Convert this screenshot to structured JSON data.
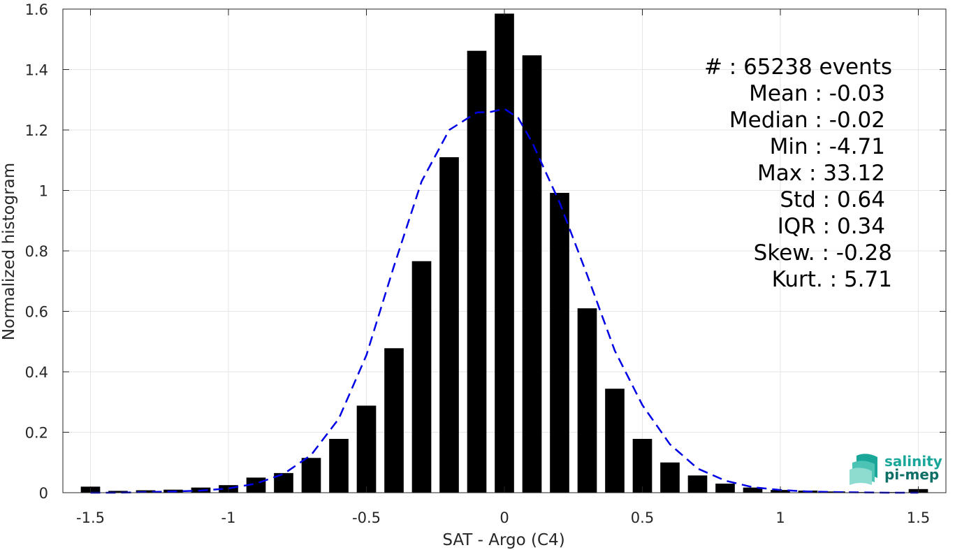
{
  "chart_data": {
    "type": "bar",
    "xlabel": "SAT - Argo (C4)",
    "ylabel": "Normalized histogram",
    "xlim": [
      -1.6,
      1.6
    ],
    "ylim": [
      0,
      1.6
    ],
    "xticks": [
      -1.5,
      -1,
      -0.5,
      0,
      0.5,
      1,
      1.5
    ],
    "xtick_labels": [
      "-1.5",
      "-1",
      "-0.5",
      "0",
      "0.5",
      "1",
      "1.5"
    ],
    "yticks": [
      0,
      0.2,
      0.4,
      0.6,
      0.8,
      1,
      1.2,
      1.4,
      1.6
    ],
    "ytick_labels": [
      "0",
      "0.2",
      "0.4",
      "0.6",
      "0.8",
      "1",
      "1.2",
      "1.4",
      "1.6"
    ],
    "grid": true,
    "bar_color": "#000000",
    "bar_width": 0.07,
    "bars": {
      "x": [
        -1.5,
        -1.4,
        -1.3,
        -1.2,
        -1.1,
        -1.0,
        -0.9,
        -0.8,
        -0.7,
        -0.6,
        -0.5,
        -0.4,
        -0.3,
        -0.2,
        -0.1,
        0.0,
        0.1,
        0.2,
        0.3,
        0.4,
        0.5,
        0.6,
        0.7,
        0.8,
        0.9,
        1.0,
        1.1,
        1.2,
        1.3,
        1.4,
        1.5
      ],
      "values": [
        0.02,
        0.006,
        0.008,
        0.01,
        0.017,
        0.025,
        0.05,
        0.065,
        0.115,
        0.178,
        0.288,
        0.478,
        0.766,
        1.11,
        1.462,
        1.585,
        1.447,
        0.992,
        0.61,
        0.344,
        0.178,
        0.1,
        0.057,
        0.03,
        0.017,
        0.009,
        0.007,
        0.004,
        0.002,
        0.002,
        0.012
      ]
    },
    "fit_curve": {
      "style": "dashed",
      "color": "#0000e6",
      "x": [
        -1.5,
        -1.4,
        -1.3,
        -1.2,
        -1.1,
        -1.0,
        -0.9,
        -0.8,
        -0.7,
        -0.6,
        -0.5,
        -0.4,
        -0.3,
        -0.2,
        -0.1,
        -0.05,
        0.0,
        0.05,
        0.1,
        0.2,
        0.3,
        0.4,
        0.5,
        0.6,
        0.7,
        0.8,
        0.9,
        1.0,
        1.1,
        1.2,
        1.3,
        1.4,
        1.5
      ],
      "values": [
        0.0,
        0.0,
        0.002,
        0.004,
        0.007,
        0.014,
        0.03,
        0.062,
        0.125,
        0.245,
        0.455,
        0.75,
        1.03,
        1.2,
        1.258,
        1.26,
        1.27,
        1.24,
        1.16,
        0.96,
        0.72,
        0.47,
        0.29,
        0.16,
        0.08,
        0.04,
        0.018,
        0.009,
        0.004,
        0.002,
        0.001,
        0.0,
        0.0
      ]
    }
  },
  "stats": [
    {
      "text": "#  : 65238 events",
      "align": "end-outer"
    },
    {
      "text": "Mean : -0.03",
      "align": "end"
    },
    {
      "text": "Median : -0.02",
      "align": "end"
    },
    {
      "text": "Min : -4.71",
      "align": "end"
    },
    {
      "text": "Max : 33.12",
      "align": "end"
    },
    {
      "text": "Std : 0.64",
      "align": "end"
    },
    {
      "text": "IQR : 0.34",
      "align": "end"
    },
    {
      "text": "Skew. : -0.28",
      "align": "end-outer"
    },
    {
      "text": "Kurt. : 5.71",
      "align": "end-outer"
    }
  ],
  "logo": {
    "line1": "salinity",
    "line2": "pi-mep",
    "color_line1": "#1aa79a",
    "color_line2": "#0e6f66"
  },
  "colors": {
    "grid": "#e6e6e6",
    "axis": "#262626"
  }
}
